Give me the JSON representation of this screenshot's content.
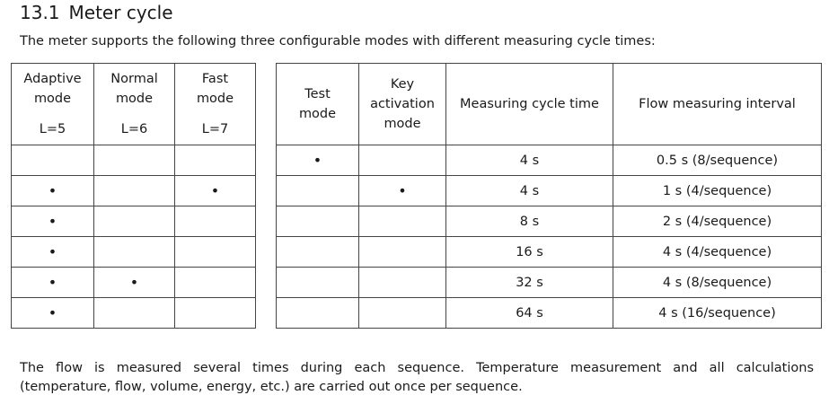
{
  "heading": {
    "number": "13.1",
    "title": "Meter cycle"
  },
  "intro": "The meter supports the following three configurable modes with different measuring cycle times:",
  "left_table": {
    "columns": [
      {
        "line1": "Adaptive",
        "line2": "mode",
        "level": "L=5"
      },
      {
        "line1": "Normal",
        "line2": "mode",
        "level": "L=6"
      },
      {
        "line1": "Fast",
        "line2": "mode",
        "level": "L=7"
      }
    ],
    "rows": [
      [
        "",
        "",
        ""
      ],
      [
        "•",
        "",
        "•"
      ],
      [
        "•",
        "",
        ""
      ],
      [
        "•",
        "",
        ""
      ],
      [
        "•",
        "•",
        ""
      ],
      [
        "•",
        "",
        ""
      ]
    ]
  },
  "right_table": {
    "headers": {
      "test_mode_1": "Test",
      "test_mode_2": "mode",
      "key_1": "Key",
      "key_2": "activation",
      "key_3": "mode",
      "cycle": "Measuring cycle time",
      "flow": "Flow measuring interval"
    },
    "rows": [
      [
        "•",
        "",
        "4 s",
        "0.5 s (8/sequence)"
      ],
      [
        "",
        "•",
        "4 s",
        "1 s (4/sequence)"
      ],
      [
        "",
        "",
        "8 s",
        "2 s (4/sequence)"
      ],
      [
        "",
        "",
        "16 s",
        "4 s (4/sequence)"
      ],
      [
        "",
        "",
        "32 s",
        "4 s (8/sequence)"
      ],
      [
        "",
        "",
        "64 s",
        "4 s (16/sequence)"
      ]
    ]
  },
  "outro": {
    "line1": "The flow is measured several times during each sequence. Temperature measurement and all calculations",
    "line2": "(temperature, flow, volume, energy, etc.) are carried out once per sequence."
  }
}
